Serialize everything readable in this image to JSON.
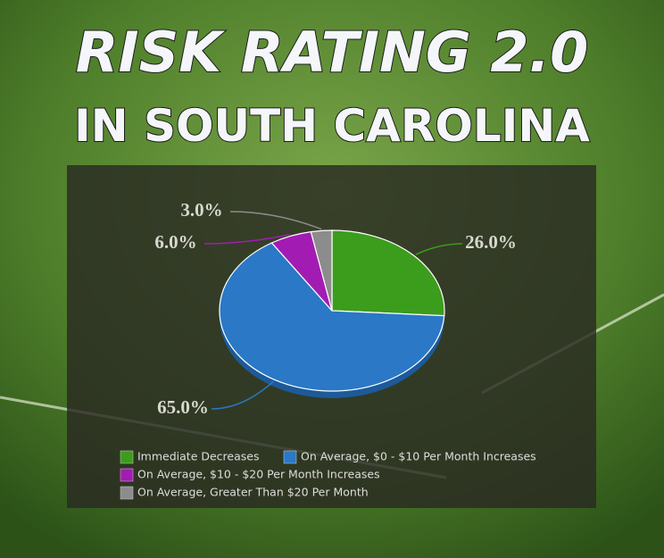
{
  "chart_data": {
    "type": "pie",
    "title": "RISK RATING 2.0",
    "subtitle": "IN SOUTH CAROLINA",
    "categories": [
      "Immediate Decreases",
      "On Average, $0 - $10 Per Month Increases",
      "On Average, $10 - $20 Per Month Increases",
      "On Average, Greater Than $20 Per Month"
    ],
    "values": [
      26,
      65,
      6,
      3
    ],
    "value_labels": [
      "26.0%",
      "65.0%",
      "6.0%",
      "3.0%"
    ],
    "colors": [
      "#3c9c1c",
      "#2a78c6",
      "#a21cb4",
      "#8c8c8c"
    ],
    "legend": "bottom"
  }
}
